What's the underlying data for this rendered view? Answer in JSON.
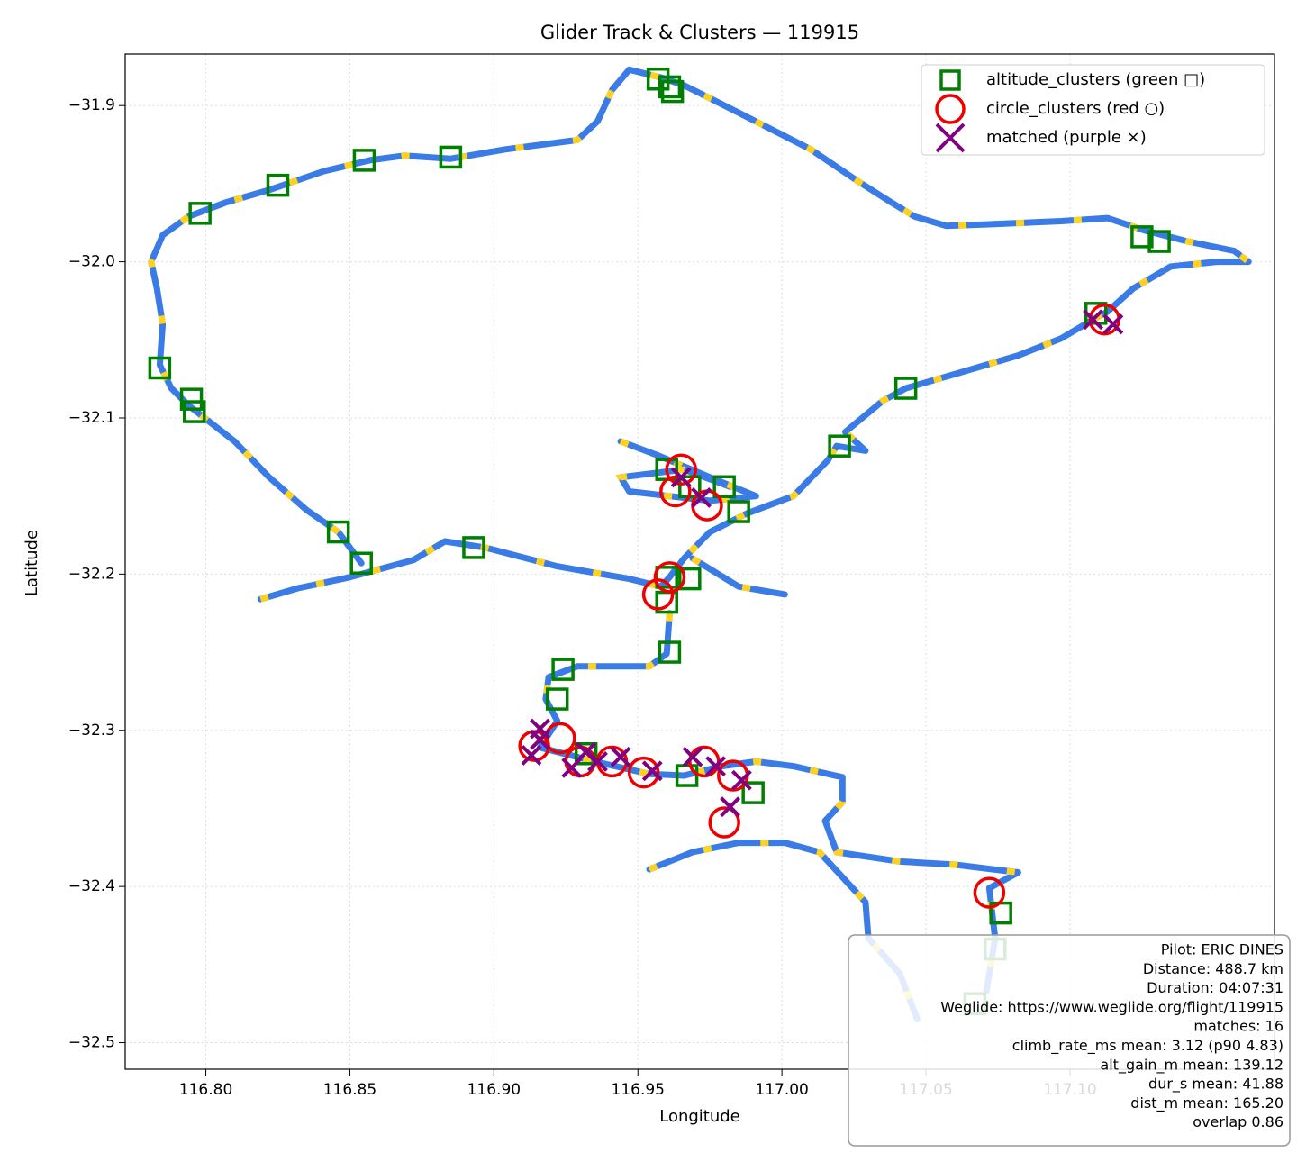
{
  "chart_data": {
    "type": "track",
    "title": "Glider Track & Clusters — 119915",
    "x_label": "Longitude",
    "y_label": "Latitude",
    "xlim": [
      116.772,
      117.171
    ],
    "ylim": [
      -32.517,
      -31.867
    ],
    "xticks": [
      {
        "value": 116.8,
        "label": "116.80"
      },
      {
        "value": 116.85,
        "label": "116.85"
      },
      {
        "value": 116.9,
        "label": "116.90"
      },
      {
        "value": 116.95,
        "label": "116.95"
      },
      {
        "value": 117.0,
        "label": "117.00"
      },
      {
        "value": 117.05,
        "label": "117.05"
      },
      {
        "value": 117.1,
        "label": "117.10"
      }
    ],
    "yticks": [
      {
        "value": -31.9,
        "label": "−31.9"
      },
      {
        "value": -32.0,
        "label": "−32.0"
      },
      {
        "value": -32.1,
        "label": "−32.1"
      },
      {
        "value": -32.2,
        "label": "−32.2"
      },
      {
        "value": -32.3,
        "label": "−32.3"
      },
      {
        "value": -32.4,
        "label": "−32.4"
      },
      {
        "value": -32.5,
        "label": "−32.5"
      }
    ],
    "grid": true,
    "legend": "upper right",
    "track": {
      "color": "#3a7be6",
      "highlight_color": "#ffd21f",
      "x": [
        116.819,
        116.832,
        116.85,
        116.872,
        116.883,
        116.897,
        116.922,
        116.947,
        116.958,
        116.961,
        116.966,
        116.975,
        116.988,
        117.004,
        117.016,
        117.019,
        117.029,
        117.022,
        117.035,
        117.043,
        117.06,
        117.082,
        117.097,
        117.108,
        117.113,
        117.122,
        117.135,
        117.151,
        117.162,
        117.157,
        117.141,
        117.126,
        117.113,
        117.097,
        117.072,
        117.057,
        117.046,
        117.038,
        117.026,
        117.01,
        116.994,
        116.979,
        116.966,
        116.958,
        116.947,
        116.941,
        116.936,
        116.929,
        116.904,
        116.885,
        116.869,
        116.857,
        116.841,
        116.822,
        116.807,
        116.794,
        116.785,
        116.781,
        116.783,
        116.785,
        116.784,
        116.788,
        116.794,
        116.81,
        116.822,
        116.835,
        116.846,
        116.854,
        null,
        116.961,
        116.96,
        116.954,
        116.929,
        116.919,
        116.918,
        116.922,
        116.916,
        116.935,
        116.954,
        116.966,
        116.979,
        116.991,
        117.004,
        117.021,
        117.021,
        117.015,
        117.019,
        117.041,
        117.06,
        117.082,
        117.072,
        117.074,
        117.071,
        null,
        116.954,
        116.969,
        116.985,
        117.001,
        117.013,
        117.029,
        117.03,
        117.041,
        117.047,
        null,
        116.944,
        116.957,
        116.975,
        116.991,
        116.975,
        116.947,
        116.944,
        116.966,
        116.982,
        null,
        116.969,
        116.985,
        117.001
      ],
      "y": [
        -32.216,
        -32.209,
        -32.202,
        -32.191,
        -32.179,
        -32.183,
        -32.195,
        -32.203,
        -32.208,
        -32.202,
        -32.19,
        -32.173,
        -32.161,
        -32.15,
        -32.127,
        -32.118,
        -32.121,
        -32.109,
        -32.089,
        -32.081,
        -32.072,
        -32.06,
        -32.049,
        -32.037,
        -32.032,
        -32.017,
        -32.003,
        -32.0,
        -32.0,
        -31.993,
        -31.987,
        -31.98,
        -31.972,
        -31.974,
        -31.976,
        -31.977,
        -31.971,
        -31.962,
        -31.948,
        -31.928,
        -31.913,
        -31.899,
        -31.887,
        -31.882,
        -31.877,
        -31.89,
        -31.91,
        -31.922,
        -31.928,
        -31.934,
        -31.932,
        -31.935,
        -31.942,
        -31.954,
        -31.962,
        -31.971,
        -31.983,
        -32.0,
        -32.017,
        -32.04,
        -32.066,
        -32.081,
        -32.092,
        -32.115,
        -32.138,
        -32.159,
        -32.173,
        -32.193,
        null,
        -32.225,
        -32.251,
        -32.259,
        -32.259,
        -32.266,
        -32.28,
        -32.294,
        -32.311,
        -32.32,
        -32.328,
        -32.329,
        -32.323,
        -32.32,
        -32.323,
        -32.33,
        -32.346,
        -32.358,
        -32.378,
        -32.384,
        -32.386,
        -32.391,
        -32.401,
        -32.433,
        -32.467,
        null,
        -32.389,
        -32.378,
        -32.372,
        -32.372,
        -32.378,
        -32.41,
        -32.433,
        -32.456,
        -32.485,
        null,
        -32.115,
        -32.124,
        -32.138,
        -32.15,
        -32.153,
        -32.147,
        -32.138,
        -32.133,
        -32.144,
        null,
        -32.19,
        -32.208,
        -32.213
      ]
    },
    "series": [
      {
        "name": "altitude_clusters (green □)",
        "color": "#008000",
        "marker": "square",
        "x": [
          116.957,
          116.961,
          116.962,
          116.885,
          116.855,
          116.825,
          116.798,
          116.784,
          116.795,
          116.796,
          116.846,
          116.854,
          116.893,
          116.96,
          116.968,
          116.98,
          116.985,
          116.96,
          116.968,
          116.96,
          116.961,
          116.924,
          116.922,
          116.932,
          116.967,
          116.99,
          117.043,
          117.02,
          117.109,
          117.125,
          117.131,
          117.076,
          117.074,
          117.067
        ],
        "y": [
          -31.883,
          -31.888,
          -31.891,
          -31.933,
          -31.935,
          -31.951,
          -31.969,
          -32.068,
          -32.088,
          -32.096,
          -32.173,
          -32.193,
          -32.183,
          -32.133,
          -32.144,
          -32.144,
          -32.16,
          -32.202,
          -32.203,
          -32.218,
          -32.25,
          -32.261,
          -32.28,
          -32.315,
          -32.329,
          -32.34,
          -32.081,
          -32.118,
          -32.033,
          -31.984,
          -31.987,
          -32.417,
          -32.44,
          -32.475
        ]
      },
      {
        "name": "circle_clusters (red ○)",
        "color": "#ee0000",
        "marker": "circle",
        "x": [
          116.965,
          116.963,
          116.974,
          116.961,
          116.957,
          116.914,
          116.923,
          116.93,
          116.941,
          116.952,
          116.973,
          116.983,
          116.98,
          117.072,
          117.112
        ],
        "y": [
          -32.133,
          -32.147,
          -32.156,
          -32.202,
          -32.213,
          -32.31,
          -32.305,
          -32.32,
          -32.32,
          -32.327,
          -32.32,
          -32.329,
          -32.359,
          -32.404,
          -32.037
        ]
      },
      {
        "name": "matched (purple ×)",
        "color": "#800080",
        "marker": "x",
        "x": [
          116.913,
          116.916,
          116.927,
          116.936,
          116.944,
          116.955,
          116.969,
          116.977,
          116.986,
          116.982,
          117.108,
          117.115,
          116.965,
          116.972,
          116.916,
          116.932
        ],
        "y": [
          -32.316,
          -32.306,
          -32.324,
          -32.32,
          -32.317,
          -32.326,
          -32.317,
          -32.323,
          -32.332,
          -32.349,
          -32.037,
          -32.04,
          -32.138,
          -32.151,
          -32.299,
          -32.314
        ]
      }
    ],
    "info_box": [
      "Pilot: ERIC DINES",
      "Distance: 488.7 km",
      "Duration: 04:07:31",
      "Weglide: https://www.weglide.org/flight/119915",
      "matches: 16",
      "climb_rate_ms mean: 3.12 (p90 4.83)",
      "alt_gain_m mean: 139.12",
      "dur_s mean: 41.88",
      "dist_m mean: 165.20",
      "overlap 0.86"
    ]
  }
}
